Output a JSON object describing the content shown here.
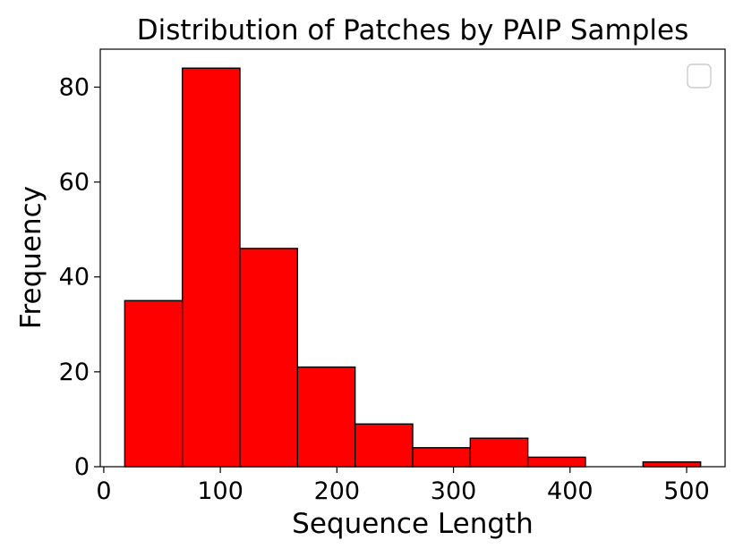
{
  "chart_data": {
    "type": "bar",
    "title": "Distribution of Patches by PAIP Samples",
    "xlabel": "Sequence Length",
    "ylabel": "Frequency",
    "xlim": [
      -3,
      533
    ],
    "ylim": [
      0,
      88
    ],
    "xticks": [
      0,
      100,
      200,
      300,
      400,
      500
    ],
    "yticks": [
      0,
      20,
      40,
      60,
      80
    ],
    "bin_edges": [
      18,
      67.4,
      116.8,
      166.2,
      215.6,
      265,
      314.4,
      363.8,
      413.2,
      462.6,
      512
    ],
    "values": [
      35,
      84,
      46,
      21,
      9,
      4,
      6,
      2,
      0,
      1
    ],
    "bar_color": "#ff0000",
    "edge_color": "#000000",
    "grid": false,
    "legend": {
      "placement": "top-right",
      "entries": []
    }
  }
}
